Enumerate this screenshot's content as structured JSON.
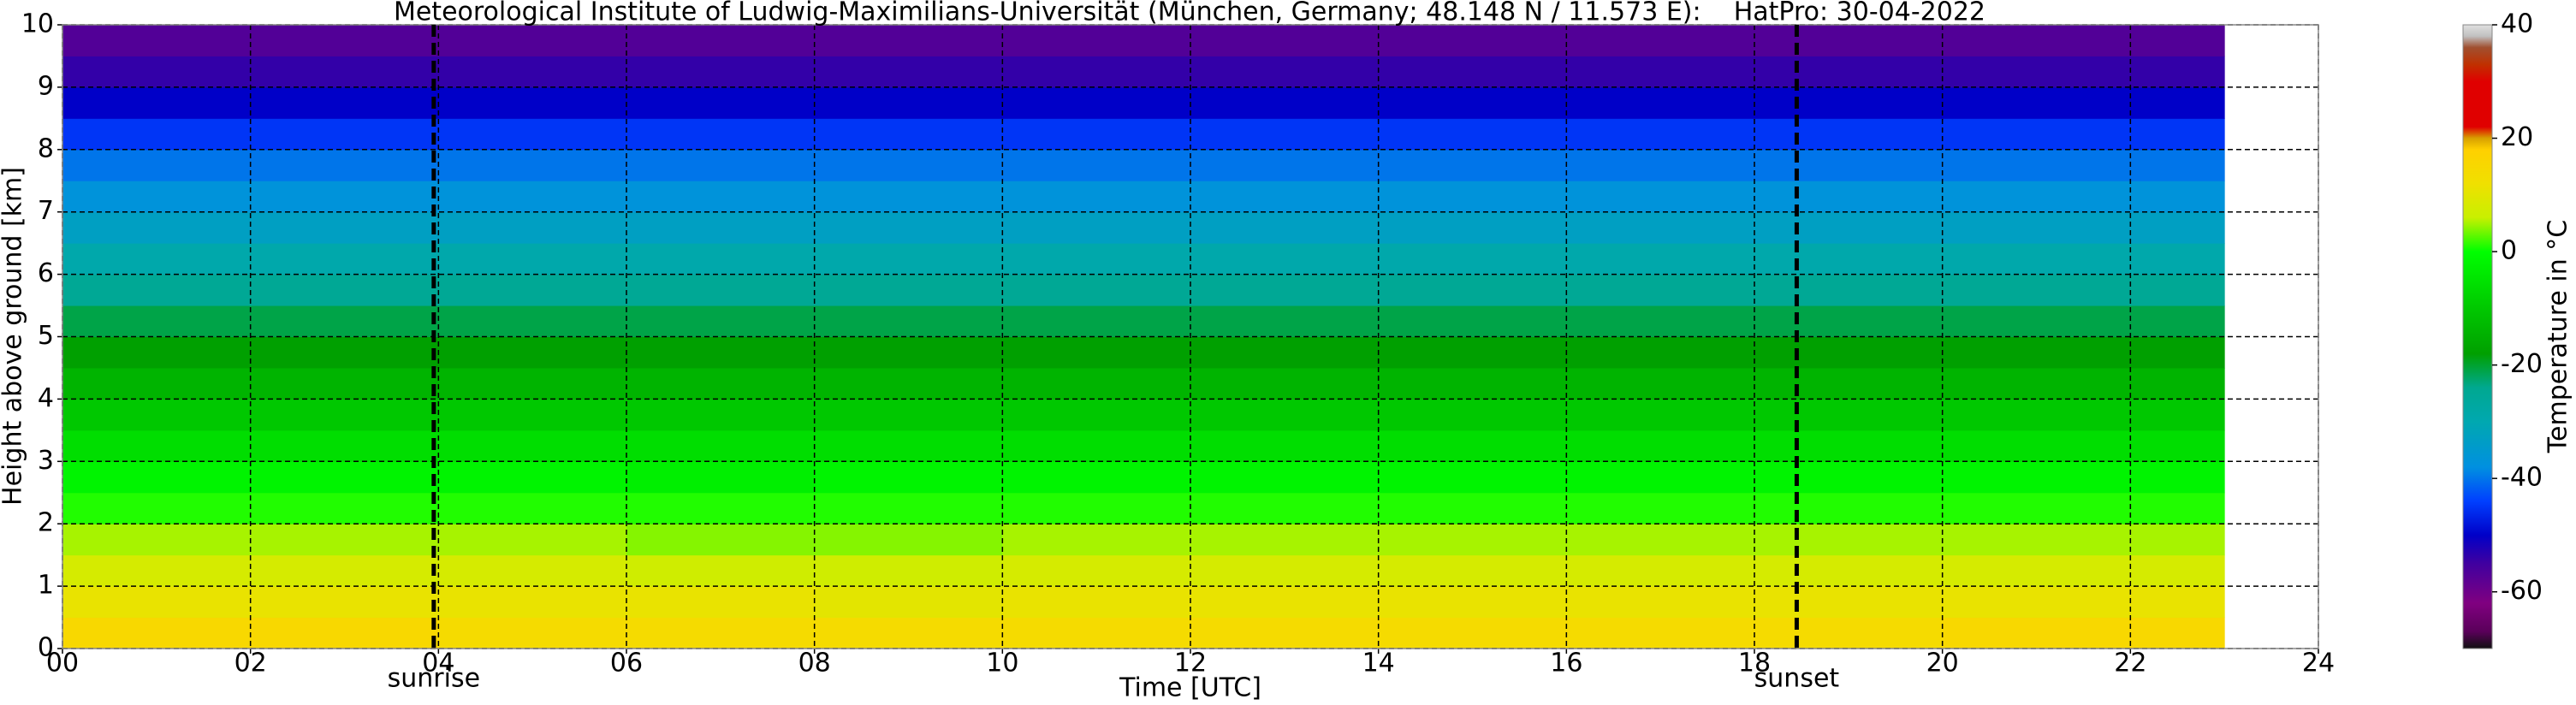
{
  "chart_data": {
    "type": "heatmap",
    "title": "Meteorological Institute of Ludwig-Maximilians-Universität (München, Germany; 48.148 N / 11.573 E):    HatPro: 30-04-2022",
    "x_label": "Time [UTC]",
    "y_label": "Height above ground [km]",
    "colorbar_label": "Temperature in °C",
    "x_edges": [
      0,
      2,
      4,
      6,
      8,
      10,
      12,
      14,
      16,
      18,
      20,
      22,
      23
    ],
    "y_edges": [
      0,
      0.5,
      1,
      1.5,
      2,
      2.5,
      3,
      3.5,
      4,
      4.5,
      5,
      5.5,
      6,
      6.5,
      7,
      7.5,
      8,
      8.5,
      9,
      9.5,
      10
    ],
    "values": [
      [
        15,
        15,
        14,
        14,
        14,
        14,
        14,
        14,
        14,
        14,
        15,
        15
      ],
      [
        11,
        11,
        11,
        11,
        10,
        11,
        11,
        11,
        11,
        11,
        11,
        11
      ],
      [
        8,
        8,
        8,
        7,
        7,
        8,
        8,
        8,
        8,
        8,
        8,
        8
      ],
      [
        5,
        5,
        5,
        4,
        4,
        5,
        5,
        5,
        5,
        5,
        5,
        5
      ],
      [
        1,
        1,
        1,
        1,
        1,
        1,
        1,
        1,
        1,
        1,
        1,
        1
      ],
      [
        -2,
        -2,
        -2,
        -3,
        -2,
        -2,
        -2,
        -2,
        -2,
        -2,
        -2,
        -2
      ],
      [
        -6,
        -6,
        -6,
        -6,
        -6,
        -6,
        -6,
        -6,
        -6,
        -6,
        -6,
        -6
      ],
      [
        -10,
        -10,
        -10,
        -10,
        -10,
        -10,
        -10,
        -10,
        -10,
        -10,
        -10,
        -10
      ],
      [
        -14,
        -14,
        -14,
        -14,
        -14,
        -14,
        -14,
        -14,
        -14,
        -14,
        -14,
        -14
      ],
      [
        -18,
        -18,
        -18,
        -18,
        -18,
        -18,
        -18,
        -18,
        -18,
        -18,
        -18,
        -18
      ],
      [
        -21,
        -21,
        -21,
        -21,
        -21,
        -21,
        -21,
        -21,
        -21,
        -21,
        -21,
        -21
      ],
      [
        -25,
        -25,
        -25,
        -25,
        -25,
        -25,
        -25,
        -25,
        -25,
        -25,
        -25,
        -25
      ],
      [
        -29,
        -29,
        -29,
        -29,
        -29,
        -29,
        -29,
        -29,
        -29,
        -29,
        -29,
        -29
      ],
      [
        -33,
        -33,
        -33,
        -33,
        -33,
        -33,
        -33,
        -33,
        -33,
        -33,
        -33,
        -33
      ],
      [
        -37,
        -37,
        -37,
        -37,
        -37,
        -37,
        -37,
        -37,
        -37,
        -37,
        -37,
        -37
      ],
      [
        -40,
        -40,
        -40,
        -40,
        -40,
        -40,
        -40,
        -40,
        -40,
        -40,
        -40,
        -40
      ],
      [
        -45,
        -45,
        -45,
        -45,
        -45,
        -45,
        -45,
        -45,
        -45,
        -45,
        -45,
        -45
      ],
      [
        -50,
        -50,
        -50,
        -50,
        -50,
        -50,
        -50,
        -50,
        -50,
        -50,
        -50,
        -50
      ],
      [
        -54,
        -54,
        -54,
        -54,
        -54,
        -54,
        -54,
        -54,
        -54,
        -54,
        -54,
        -54
      ],
      [
        -57,
        -57,
        -57,
        -57,
        -57,
        -57,
        -57,
        -57,
        -57,
        -57,
        -57,
        -57
      ]
    ],
    "xlim": [
      0,
      24
    ],
    "ylim": [
      0,
      10
    ],
    "xticks": [
      {
        "value": 0,
        "label": "00"
      },
      {
        "value": 2,
        "label": "02"
      },
      {
        "value": 4,
        "label": "04"
      },
      {
        "value": 6,
        "label": "06"
      },
      {
        "value": 8,
        "label": "08"
      },
      10,
      12,
      14,
      16,
      18,
      20,
      22,
      24
    ],
    "yticks": [
      0,
      1,
      2,
      3,
      4,
      5,
      6,
      7,
      8,
      9,
      10
    ],
    "grid": true,
    "clim": [
      -70,
      40
    ],
    "cticks": [
      -60,
      -40,
      -20,
      0,
      20,
      40
    ],
    "colormap": [
      [
        -70,
        "#101010"
      ],
      [
        -67,
        "#5a005a"
      ],
      [
        -62,
        "#800080"
      ],
      [
        -55,
        "#4000a0"
      ],
      [
        -50,
        "#0000c8"
      ],
      [
        -44,
        "#0040ff"
      ],
      [
        -38,
        "#0090e0"
      ],
      [
        -30,
        "#00a8b0"
      ],
      [
        -24,
        "#00a890"
      ],
      [
        -18,
        "#00a000"
      ],
      [
        -10,
        "#00c800"
      ],
      [
        0,
        "#00ff00"
      ],
      [
        6,
        "#c8f000"
      ],
      [
        12,
        "#f0e000"
      ],
      [
        18,
        "#ffd000"
      ],
      [
        20,
        "#d8a000"
      ],
      [
        22,
        "#e00000"
      ],
      [
        30,
        "#e00000"
      ],
      [
        33,
        "#c03000"
      ],
      [
        36,
        "#a05030"
      ],
      [
        38,
        "#c0c0c0"
      ],
      [
        40,
        "#e0e0e0"
      ]
    ],
    "annotations": [
      {
        "x": 3.95,
        "label": "sunrise"
      },
      {
        "x": 18.45,
        "label": "sunset"
      }
    ]
  }
}
